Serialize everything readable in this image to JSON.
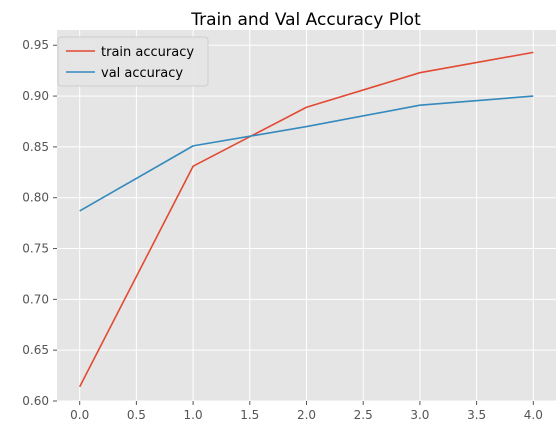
{
  "chart_data": {
    "type": "line",
    "title": "Train and Val Accuracy Plot",
    "xlabel": "",
    "ylabel": "",
    "x": [
      0,
      1,
      2,
      3,
      4
    ],
    "x_ticks": [
      "0.0",
      "0.5",
      "1.0",
      "1.5",
      "2.0",
      "2.5",
      "3.0",
      "3.5",
      "4.0"
    ],
    "y_ticks": [
      "0.60",
      "0.65",
      "0.70",
      "0.75",
      "0.80",
      "0.85",
      "0.90",
      "0.95"
    ],
    "xlim": [
      -0.2,
      4.2
    ],
    "ylim": [
      0.6,
      0.965
    ],
    "grid": true,
    "legend_position": "top-left",
    "series": [
      {
        "name": "train accuracy",
        "color": "#e24a33",
        "values": [
          0.614,
          0.831,
          0.889,
          0.923,
          0.943
        ]
      },
      {
        "name": "val accuracy",
        "color": "#348abd",
        "values": [
          0.787,
          0.851,
          0.87,
          0.891,
          0.9
        ]
      }
    ]
  }
}
